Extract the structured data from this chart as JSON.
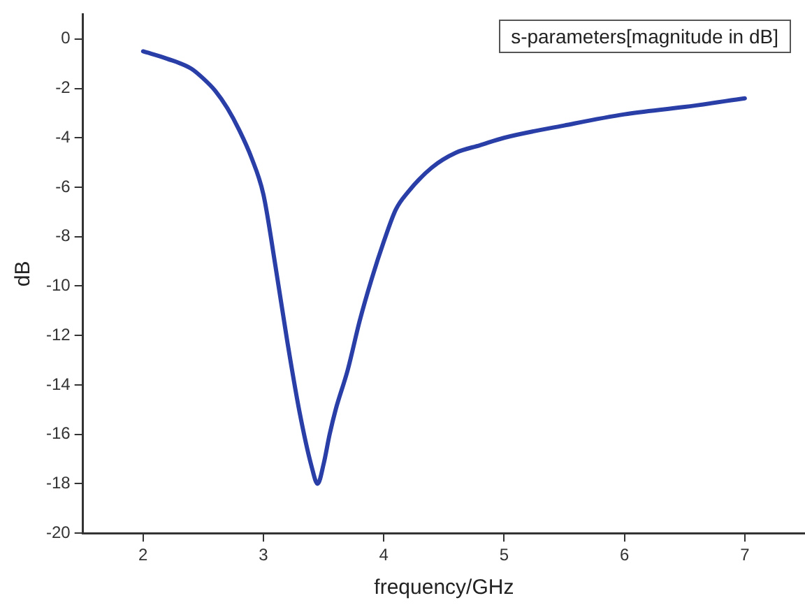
{
  "chart_data": {
    "type": "line",
    "xlabel": "frequency/GHz",
    "ylabel": "dB",
    "annotations": [
      "s-parameters[magnitude in dB]"
    ],
    "x": [
      2,
      2.2,
      2.4,
      2.5,
      2.6,
      2.7,
      2.8,
      2.9,
      3.0,
      3.1,
      3.2,
      3.3,
      3.4,
      3.45,
      3.5,
      3.55,
      3.6,
      3.7,
      3.8,
      3.9,
      4.0,
      4.1,
      4.2,
      4.4,
      4.6,
      4.8,
      5.0,
      5.5,
      6.0,
      6.5,
      7.0
    ],
    "series": [
      {
        "color": "#2a3ea8",
        "values": [
          -0.5,
          -0.8,
          -1.2,
          -1.6,
          -2.1,
          -2.8,
          -3.7,
          -4.8,
          -6.3,
          -9.2,
          -12.3,
          -15.1,
          -17.3,
          -18.0,
          -17.2,
          -16.0,
          -15.0,
          -13.4,
          -11.4,
          -9.7,
          -8.2,
          -6.9,
          -6.2,
          -5.2,
          -4.6,
          -4.3,
          -4.0,
          -3.5,
          -3.05,
          -2.75,
          -2.4
        ]
      }
    ],
    "xlim": [
      1.5,
      7.5
    ],
    "xticks": [
      2,
      3,
      4,
      5,
      6,
      7
    ],
    "ylim": [
      -20,
      1
    ],
    "yticks": [
      -20,
      -18,
      -16,
      -14,
      -12,
      -10,
      -8,
      -6,
      -4,
      -2,
      0
    ],
    "grid": false,
    "legend": false,
    "marker": "none",
    "line_style": "solid"
  }
}
